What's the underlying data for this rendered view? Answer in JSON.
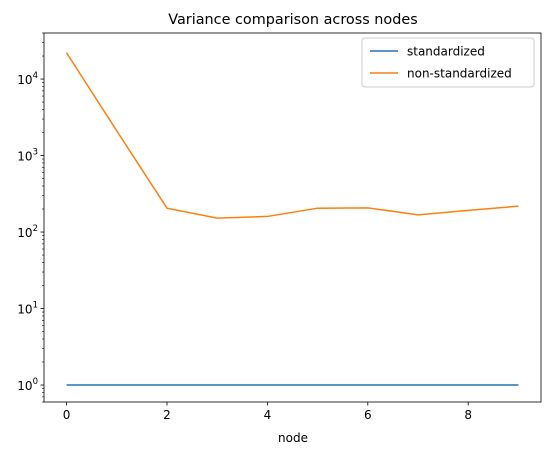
{
  "chart_data": {
    "type": "line",
    "title": "Variance comparison across nodes",
    "xlabel": "node",
    "ylabel": "",
    "yscale": "log",
    "xlim": [
      -0.45,
      9.45
    ],
    "ylim": [
      0.6,
      40000
    ],
    "x": [
      0,
      1,
      2,
      3,
      4,
      5,
      6,
      7,
      8,
      9
    ],
    "x_ticks": [
      0,
      2,
      4,
      6,
      8
    ],
    "y_ticks": [
      {
        "value": 1,
        "base": "10",
        "exp": "0"
      },
      {
        "value": 10,
        "base": "10",
        "exp": "1"
      },
      {
        "value": 100,
        "base": "10",
        "exp": "2"
      },
      {
        "value": 1000,
        "base": "10",
        "exp": "3"
      },
      {
        "value": 10000,
        "base": "10",
        "exp": "4"
      }
    ],
    "grid": false,
    "legend_position": "upper-right",
    "series": [
      {
        "name": "standardized",
        "color": "#1f77b4",
        "values": [
          1,
          1,
          1,
          1,
          1,
          1,
          1,
          1,
          1,
          1
        ]
      },
      {
        "name": "non-standardized",
        "color": "#ff7f0e",
        "values": [
          22000,
          2100,
          205,
          152,
          160,
          205,
          207,
          168,
          192,
          218
        ]
      }
    ]
  }
}
